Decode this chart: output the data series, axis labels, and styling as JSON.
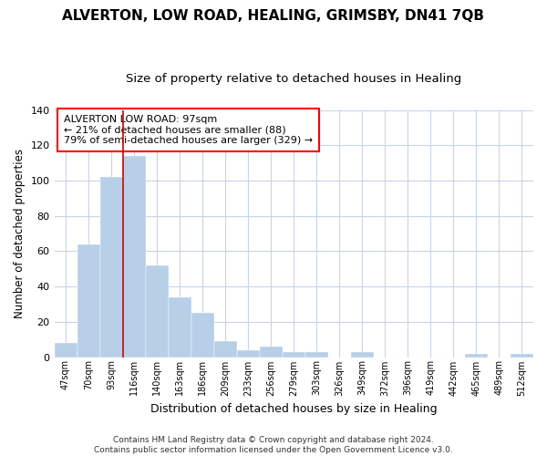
{
  "title": "ALVERTON, LOW ROAD, HEALING, GRIMSBY, DN41 7QB",
  "subtitle": "Size of property relative to detached houses in Healing",
  "xlabel": "Distribution of detached houses by size in Healing",
  "ylabel": "Number of detached properties",
  "footer_line1": "Contains HM Land Registry data © Crown copyright and database right 2024.",
  "footer_line2": "Contains public sector information licensed under the Open Government Licence v3.0.",
  "annotation_title": "ALVERTON LOW ROAD: 97sqm",
  "annotation_line2": "← 21% of detached houses are smaller (88)",
  "annotation_line3": "79% of semi-detached houses are larger (329) →",
  "bar_color": "#b8cfe8",
  "bar_edge_color": "#b8cfe8",
  "vline_color": "#cc0000",
  "categories": [
    "47sqm",
    "70sqm",
    "93sqm",
    "116sqm",
    "140sqm",
    "163sqm",
    "186sqm",
    "209sqm",
    "233sqm",
    "256sqm",
    "279sqm",
    "303sqm",
    "326sqm",
    "349sqm",
    "372sqm",
    "396sqm",
    "419sqm",
    "442sqm",
    "465sqm",
    "489sqm",
    "512sqm"
  ],
  "values": [
    8,
    64,
    102,
    114,
    52,
    34,
    25,
    9,
    4,
    6,
    3,
    3,
    0,
    3,
    0,
    0,
    0,
    0,
    2,
    0,
    2
  ],
  "ylim": [
    0,
    140
  ],
  "yticks": [
    0,
    20,
    40,
    60,
    80,
    100,
    120,
    140
  ],
  "grid_color": "#c8d4e8",
  "background_color": "#ffffff",
  "vline_x": 2.5
}
